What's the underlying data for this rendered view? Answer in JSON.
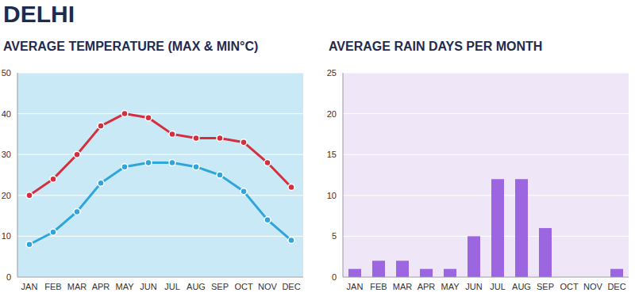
{
  "title": "DELHI",
  "chart_data": [
    {
      "type": "line",
      "title": "AVERAGE TEMPERATURE (MAX & MIN°C)",
      "categories": [
        "JAN",
        "FEB",
        "MAR",
        "APR",
        "MAY",
        "JUN",
        "JUL",
        "AUG",
        "SEP",
        "OCT",
        "NOV",
        "DEC"
      ],
      "series": [
        {
          "color": "#d32f3f",
          "marker": "circle",
          "values": [
            20,
            24,
            30,
            37,
            40,
            39,
            35,
            34,
            34,
            33,
            28,
            22
          ]
        },
        {
          "color": "#2ea6dc",
          "marker": "circle",
          "values": [
            8,
            11,
            16,
            23,
            27,
            28,
            28,
            27,
            25,
            21,
            14,
            9
          ]
        }
      ],
      "ylim": [
        0,
        50
      ],
      "yticks": [
        0,
        10,
        20,
        30,
        40,
        50
      ],
      "grid": true
    },
    {
      "type": "bar",
      "title": "AVERAGE RAIN DAYS PER MONTH",
      "categories": [
        "JAN",
        "FEB",
        "MAR",
        "APR",
        "MAY",
        "JUN",
        "JUL",
        "AUG",
        "SEP",
        "OCT",
        "NOV",
        "DEC"
      ],
      "values": [
        1,
        2,
        2,
        1,
        1,
        5,
        12,
        12,
        6,
        0,
        0,
        1
      ],
      "color": "#9b66e0",
      "ylim": [
        0,
        25
      ],
      "yticks": [
        0,
        5,
        10,
        15,
        20,
        25
      ],
      "grid": true
    }
  ]
}
